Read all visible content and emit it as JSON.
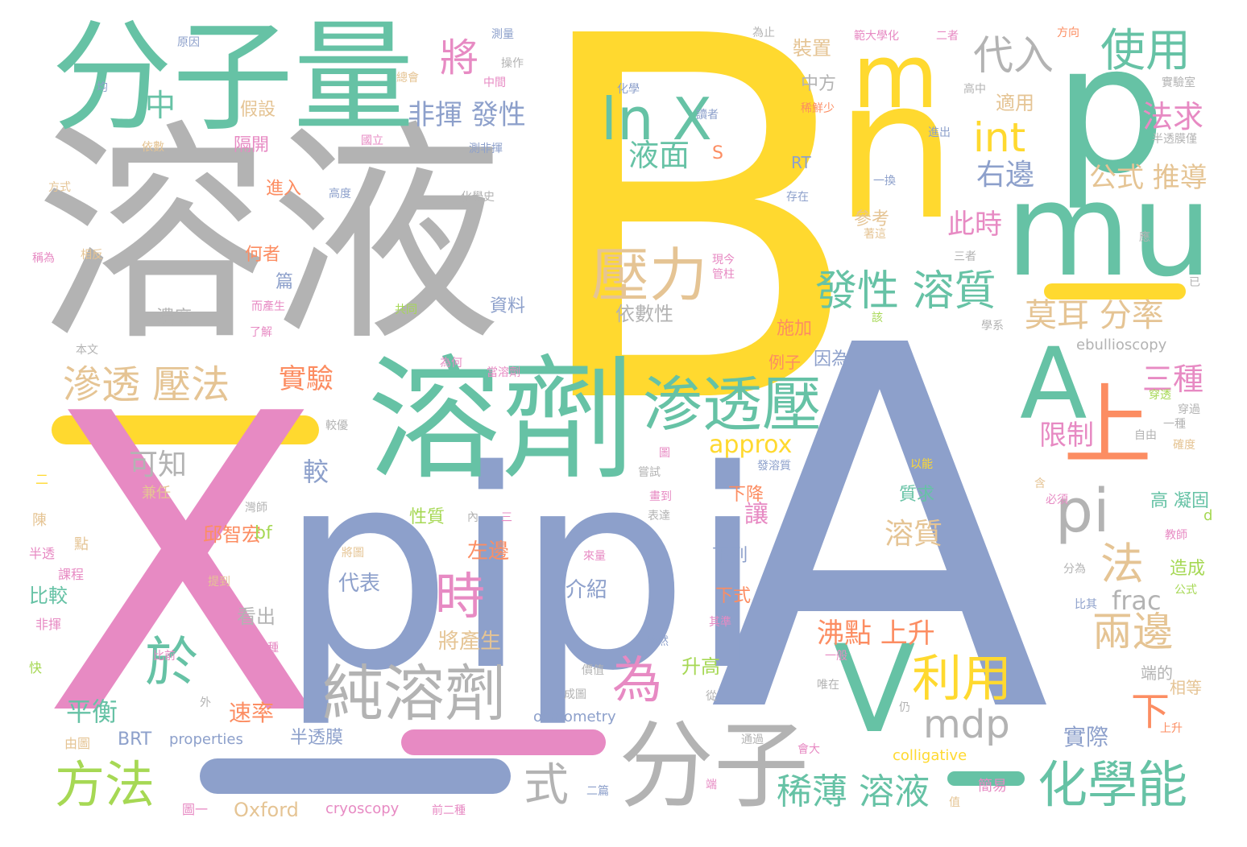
{
  "palette": {
    "yellow": "#ffd92f",
    "blue": "#8da0cb",
    "pink": "#e78ac3",
    "green": "#66c2a5",
    "gray": "#b3b3b3",
    "tan": "#e5c494",
    "lime": "#a6d854",
    "orange": "#fc8d62"
  },
  "words": [
    "B",
    "A",
    "X",
    "溶液",
    "p",
    "pi",
    "pi",
    "分子量",
    "溶劑",
    "n",
    "mu",
    "m",
    "A",
    "上",
    "分子",
    "V",
    "純溶劑",
    "渗透壓",
    "ln X",
    "代入",
    "使用",
    "將",
    "int",
    "壓力",
    "發性 溶質",
    "於",
    "時",
    "為",
    "利用",
    "化學能",
    "方法",
    "式",
    "滲透 壓法",
    "mdp",
    "稀薄 溶液",
    "莫耳 分率",
    "兩邊",
    "法",
    "pi",
    "下",
    "三種",
    "非揮 發性",
    "中",
    "液面",
    "右邊",
    "公式 推導",
    "此時",
    "法求",
    "實驗",
    "可知",
    "approx",
    "限制",
    "溶質",
    "沸點 上升",
    "平衡",
    "frac",
    "實際",
    "速率",
    "較",
    "代表",
    "介紹",
    "左邊",
    "邱智宏",
    "讓",
    "下降",
    "下列",
    "下式",
    "將產生",
    "看出",
    "比較",
    "升高",
    "隔開",
    "假設",
    "進入",
    "何者",
    "篇",
    "濃度",
    "依數性",
    "資料",
    "施加",
    "因為",
    "例子",
    "裝置",
    "中方",
    "參考",
    "適用",
    "ebullioscopy",
    "RT",
    "S",
    "Oxford",
    "cryoscopy",
    "osmometry",
    "properties",
    "colligative",
    "BRT",
    "bf",
    "半透膜",
    "高 凝固",
    "造成",
    "相等",
    "端的",
    "簡易",
    "二篇",
    "圖一",
    "由圖",
    "課程",
    "非揮",
    "快",
    "陳",
    "半透",
    "點",
    "兼任",
    "二",
    "方式",
    "稱為",
    "相反",
    "依數",
    "均",
    "原因",
    "測量",
    "操作",
    "總會",
    "中間",
    "為止",
    "範大學化",
    "二者",
    "方向",
    "化學",
    "讀者",
    "稀鮮少",
    "高中",
    "實驗室",
    "半透膜僅",
    "進出",
    "國立",
    "測非揮",
    "化學史",
    "高度",
    "存在",
    "一換",
    "著這",
    "三者",
    "現今",
    "管柱",
    "應",
    "已",
    "學系",
    "本文",
    "而產生",
    "了解",
    "共同",
    "該",
    "為何",
    "當溶劑",
    "較優",
    "圖",
    "嘗試",
    "畫到",
    "表達",
    "內",
    "三",
    "來量",
    "價值",
    "成圖",
    "從",
    "其準",
    "唯在",
    "仍",
    "一般",
    "會大",
    "通過",
    "端",
    "值",
    "前二種",
    "自由",
    "一種",
    "確度",
    "穿過",
    "穿透",
    "以能",
    "含",
    "必須",
    "教師",
    "分為",
    "公式",
    "比其",
    "上升",
    "d",
    "外",
    "雖然",
    "質求",
    "性質",
    "發溶質",
    "將圖",
    "提到",
    "比前",
    "種",
    "灣師"
  ]
}
